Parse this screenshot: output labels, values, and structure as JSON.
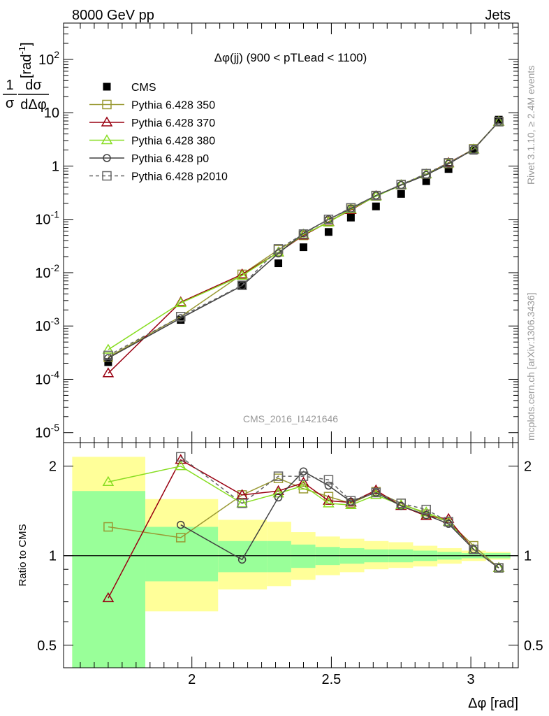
{
  "header": {
    "left": "8000 GeV pp",
    "right": "Jets"
  },
  "main_title": "Δφ(jj) (900 < pTLead <  1100)",
  "watermark": "CMS_2016_I1421646",
  "side_labels": {
    "rivet": "Rivet 3.1.10, ≥ 2.4M events",
    "mcplots": "mcplots.cern.ch [arXiv:1306.3436]"
  },
  "axes": {
    "top_ylabel_frac_num": "1",
    "top_ylabel_frac_den": "σ",
    "top_ylabel_d": "dσ",
    "top_ylabel_dd": "dΔφ",
    "top_ylabel_unit": "[rad",
    "top_ylabel_unit_exp": "-1",
    "bottom_ylabel": "Ratio to CMS",
    "xlabel": "Δφ [rad]",
    "top_ytick_labels": [
      "10^-5",
      "10^-4",
      "10^-3",
      "10^-2",
      "10^-1",
      "1",
      "10",
      "10^2"
    ],
    "bottom_ytick_labels": [
      "0.5",
      "1",
      "2"
    ],
    "xtick_labels": [
      "2",
      "2.5",
      "3"
    ]
  },
  "colors": {
    "cms": "#000000",
    "p350": "#999933",
    "p370": "#990011",
    "p380": "#88dd22",
    "p0": "#404040",
    "p2010": "#666666",
    "band_inner": "#99ff99",
    "band_outer": "#ffff99"
  },
  "chart_data": {
    "type": "line",
    "title": "Δφ(jj) (900 < pTLead <  1100)",
    "xlabel": "Δφ [rad]",
    "ylabel": "1/σ dσ/dΔφ [rad^-1]",
    "xlim": [
      1.54,
      3.17
    ],
    "ylim_top": [
      6.5e-06,
      480
    ],
    "ylim_ratio": [
      0.42,
      2.4
    ],
    "y_scale_top": "log",
    "y_scale_ratio": "log",
    "legend_position": "top-left",
    "x_bins": [
      [
        1.571,
        1.833
      ],
      [
        1.833,
        2.094
      ],
      [
        2.094,
        2.269
      ],
      [
        2.269,
        2.356
      ],
      [
        2.356,
        2.443
      ],
      [
        2.443,
        2.531
      ],
      [
        2.531,
        2.618
      ],
      [
        2.618,
        2.705
      ],
      [
        2.705,
        2.793
      ],
      [
        2.793,
        2.88
      ],
      [
        2.88,
        2.967
      ],
      [
        2.967,
        3.054
      ],
      [
        3.054,
        3.142
      ]
    ],
    "x": [
      1.7,
      1.96,
      2.18,
      2.31,
      2.4,
      2.49,
      2.57,
      2.66,
      2.75,
      2.84,
      2.92,
      3.01,
      3.1
    ],
    "series": [
      {
        "name": "CMS",
        "key": "cms",
        "marker": "filled-square",
        "line": "none",
        "values": [
          0.00021,
          0.0013,
          0.0058,
          0.015,
          0.03,
          0.058,
          0.108,
          0.175,
          0.3,
          0.52,
          0.88,
          1.95,
          7.4
        ]
      },
      {
        "name": "Pythia 6.428 350",
        "key": "p350",
        "marker": "open-square",
        "line": "solid",
        "values": [
          0.00026,
          0.0015,
          0.0093,
          0.027,
          0.05,
          0.09,
          0.155,
          0.275,
          0.445,
          0.71,
          1.12,
          2.1,
          6.8
        ],
        "ratio": [
          1.25,
          1.15,
          1.6,
          1.82,
          1.68,
          1.58,
          1.5,
          1.64,
          1.5,
          1.38,
          1.3,
          1.08,
          0.91
        ]
      },
      {
        "name": "Pythia 6.428 370",
        "key": "p370",
        "marker": "open-triangle",
        "line": "solid",
        "values": [
          0.00013,
          0.0028,
          0.0093,
          0.024,
          0.05,
          0.09,
          0.15,
          0.275,
          0.44,
          0.7,
          1.15,
          2.05,
          6.8
        ],
        "ratio": [
          0.72,
          2.1,
          1.6,
          1.65,
          1.76,
          1.53,
          1.51,
          1.66,
          1.47,
          1.36,
          1.33,
          1.05,
          0.91
        ]
      },
      {
        "name": "Pythia 6.428 380",
        "key": "p380",
        "marker": "open-triangle",
        "line": "solid",
        "values": [
          0.00036,
          0.0027,
          0.0088,
          0.024,
          0.052,
          0.088,
          0.155,
          0.27,
          0.44,
          0.7,
          1.12,
          2.05,
          6.8
        ],
        "ratio": [
          1.77,
          2.0,
          1.5,
          1.62,
          1.72,
          1.5,
          1.48,
          1.6,
          1.48,
          1.4,
          1.3,
          1.05,
          0.91
        ]
      },
      {
        "name": "Pythia 6.428 p0",
        "key": "p0",
        "marker": "open-circle",
        "line": "solid",
        "values": [
          0.00025,
          0.0014,
          0.0057,
          0.023,
          0.055,
          0.1,
          0.16,
          0.28,
          0.44,
          0.68,
          1.1,
          2.05,
          6.8
        ],
        "ratio": [
          null,
          1.27,
          0.97,
          1.57,
          1.92,
          1.72,
          1.52,
          1.63,
          1.47,
          1.37,
          1.28,
          1.05,
          0.91
        ]
      },
      {
        "name": "Pythia 6.428 p2010",
        "key": "p2010",
        "marker": "open-square",
        "line": "dashed",
        "values": [
          0.00028,
          0.0015,
          0.0058,
          0.028,
          0.053,
          0.1,
          0.165,
          0.28,
          0.45,
          0.72,
          1.15,
          2.05,
          6.8
        ],
        "ratio": [
          null,
          2.15,
          1.5,
          1.85,
          1.85,
          1.8,
          1.53,
          1.63,
          1.5,
          1.43,
          1.3,
          1.05,
          0.91
        ]
      }
    ],
    "ratio_band": {
      "inner": [
        [
          0.35,
          1.65
        ],
        [
          0.82,
          1.25
        ],
        [
          0.88,
          1.12
        ],
        [
          0.88,
          1.12
        ],
        [
          0.91,
          1.09
        ],
        [
          0.93,
          1.07
        ],
        [
          0.94,
          1.06
        ],
        [
          0.95,
          1.05
        ],
        [
          0.95,
          1.05
        ],
        [
          0.96,
          1.04
        ],
        [
          0.97,
          1.03
        ],
        [
          0.98,
          1.02
        ],
        [
          0.98,
          1.02
        ]
      ],
      "outer": [
        [
          0.35,
          2.15
        ],
        [
          0.65,
          1.55
        ],
        [
          0.77,
          1.32
        ],
        [
          0.79,
          1.3
        ],
        [
          0.83,
          1.2
        ],
        [
          0.86,
          1.16
        ],
        [
          0.88,
          1.14
        ],
        [
          0.9,
          1.12
        ],
        [
          0.91,
          1.11
        ],
        [
          0.92,
          1.08
        ],
        [
          0.94,
          1.06
        ],
        [
          0.96,
          1.04
        ],
        [
          0.97,
          1.03
        ]
      ]
    },
    "top_yticks": [
      1e-05,
      0.0001,
      0.001,
      0.01,
      0.1,
      1,
      10,
      100
    ],
    "ratio_yticks": [
      0.5,
      1,
      2
    ],
    "xticks": [
      2,
      2.5,
      3
    ]
  }
}
